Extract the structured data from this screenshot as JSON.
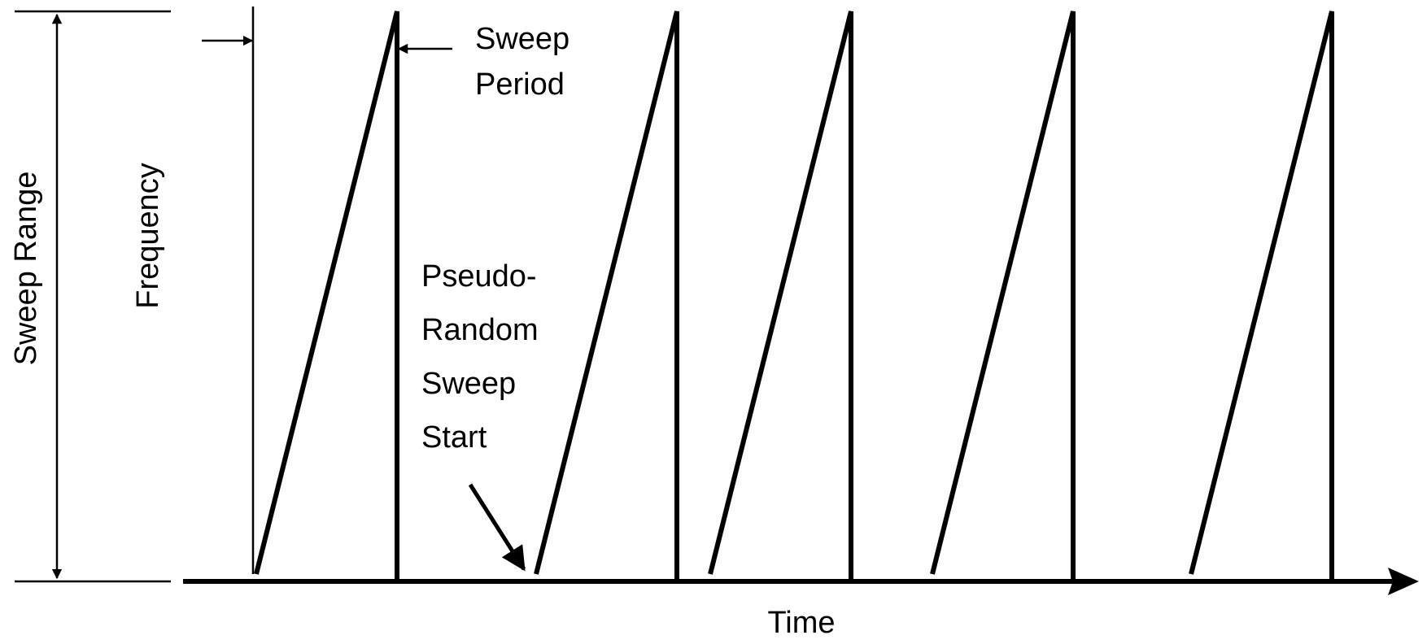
{
  "diagram": {
    "labels": {
      "sweep_range": "Sweep Range",
      "frequency": "Frequency",
      "sweep_period": [
        "Sweep",
        "Period"
      ],
      "pseudo_random": [
        "Pseudo-",
        "Random",
        "Sweep",
        "Start"
      ],
      "time": "Time"
    },
    "colors": {
      "ink": "#000000",
      "background": "#ffffff"
    }
  }
}
